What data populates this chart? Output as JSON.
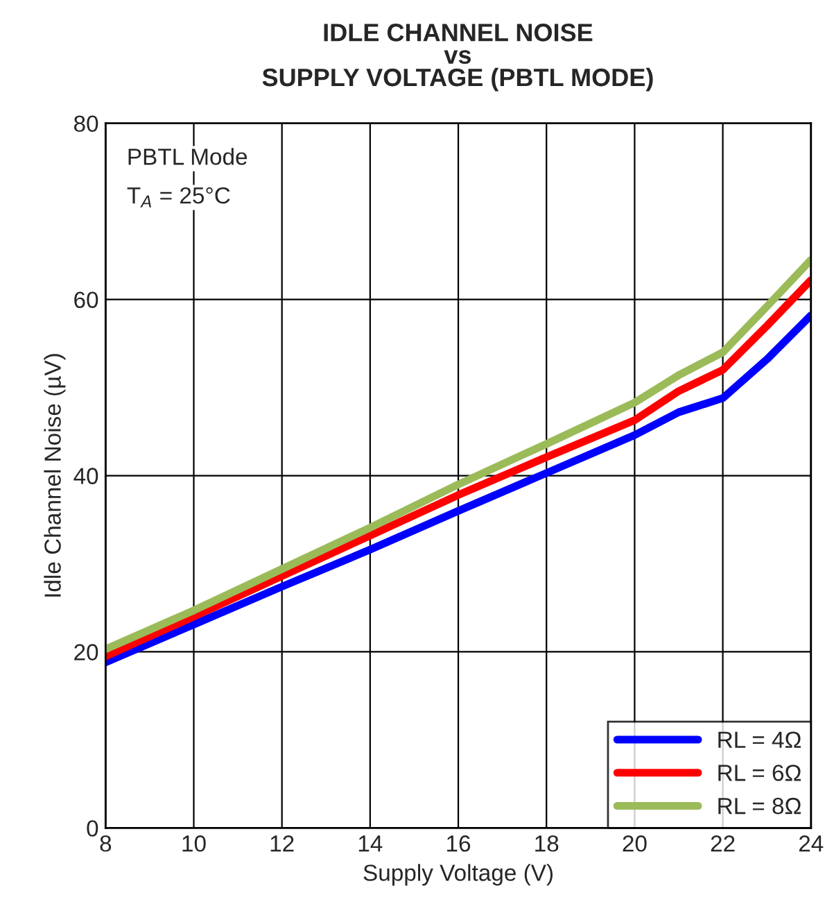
{
  "chart_data": {
    "type": "line",
    "title": "IDLE CHANNEL NOISE\nvs\nSUPPLY VOLTAGE (PBTL MODE)",
    "xlabel": "Supply Voltage (V)",
    "ylabel": "Idle Channel Noise (µV)",
    "x": [
      8,
      10,
      12,
      14,
      16,
      18,
      20,
      21,
      22,
      23,
      24
    ],
    "series": [
      {
        "name": "RL = 4Ω",
        "color": "#0000ff",
        "values": [
          18.8,
          23.1,
          27.4,
          31.6,
          36,
          40.3,
          44.6,
          47.2,
          48.8,
          53.2,
          58.2
        ]
      },
      {
        "name": "RL = 6Ω",
        "color": "#ff0000",
        "values": [
          19.5,
          24,
          28.6,
          33.2,
          37.8,
          42.1,
          46.3,
          49.6,
          52,
          57,
          62.2
        ]
      },
      {
        "name": "RL = 8Ω",
        "color": "#9bbb59",
        "values": [
          20.3,
          24.7,
          29.4,
          34.1,
          39,
          43.6,
          48.3,
          51.4,
          54,
          59.2,
          64.5
        ]
      }
    ],
    "xlim": [
      8,
      24
    ],
    "ylim": [
      0,
      80
    ],
    "xticks": [
      8,
      10,
      12,
      14,
      16,
      18,
      20,
      22,
      24
    ],
    "yticks": [
      0,
      20,
      40,
      60,
      80
    ],
    "grid": true,
    "legend": "bottom right",
    "marker": "none",
    "line_style": "solid",
    "annotations": [
      "PBTL Mode",
      "T$_{A}$ = 25°C"
    ]
  }
}
